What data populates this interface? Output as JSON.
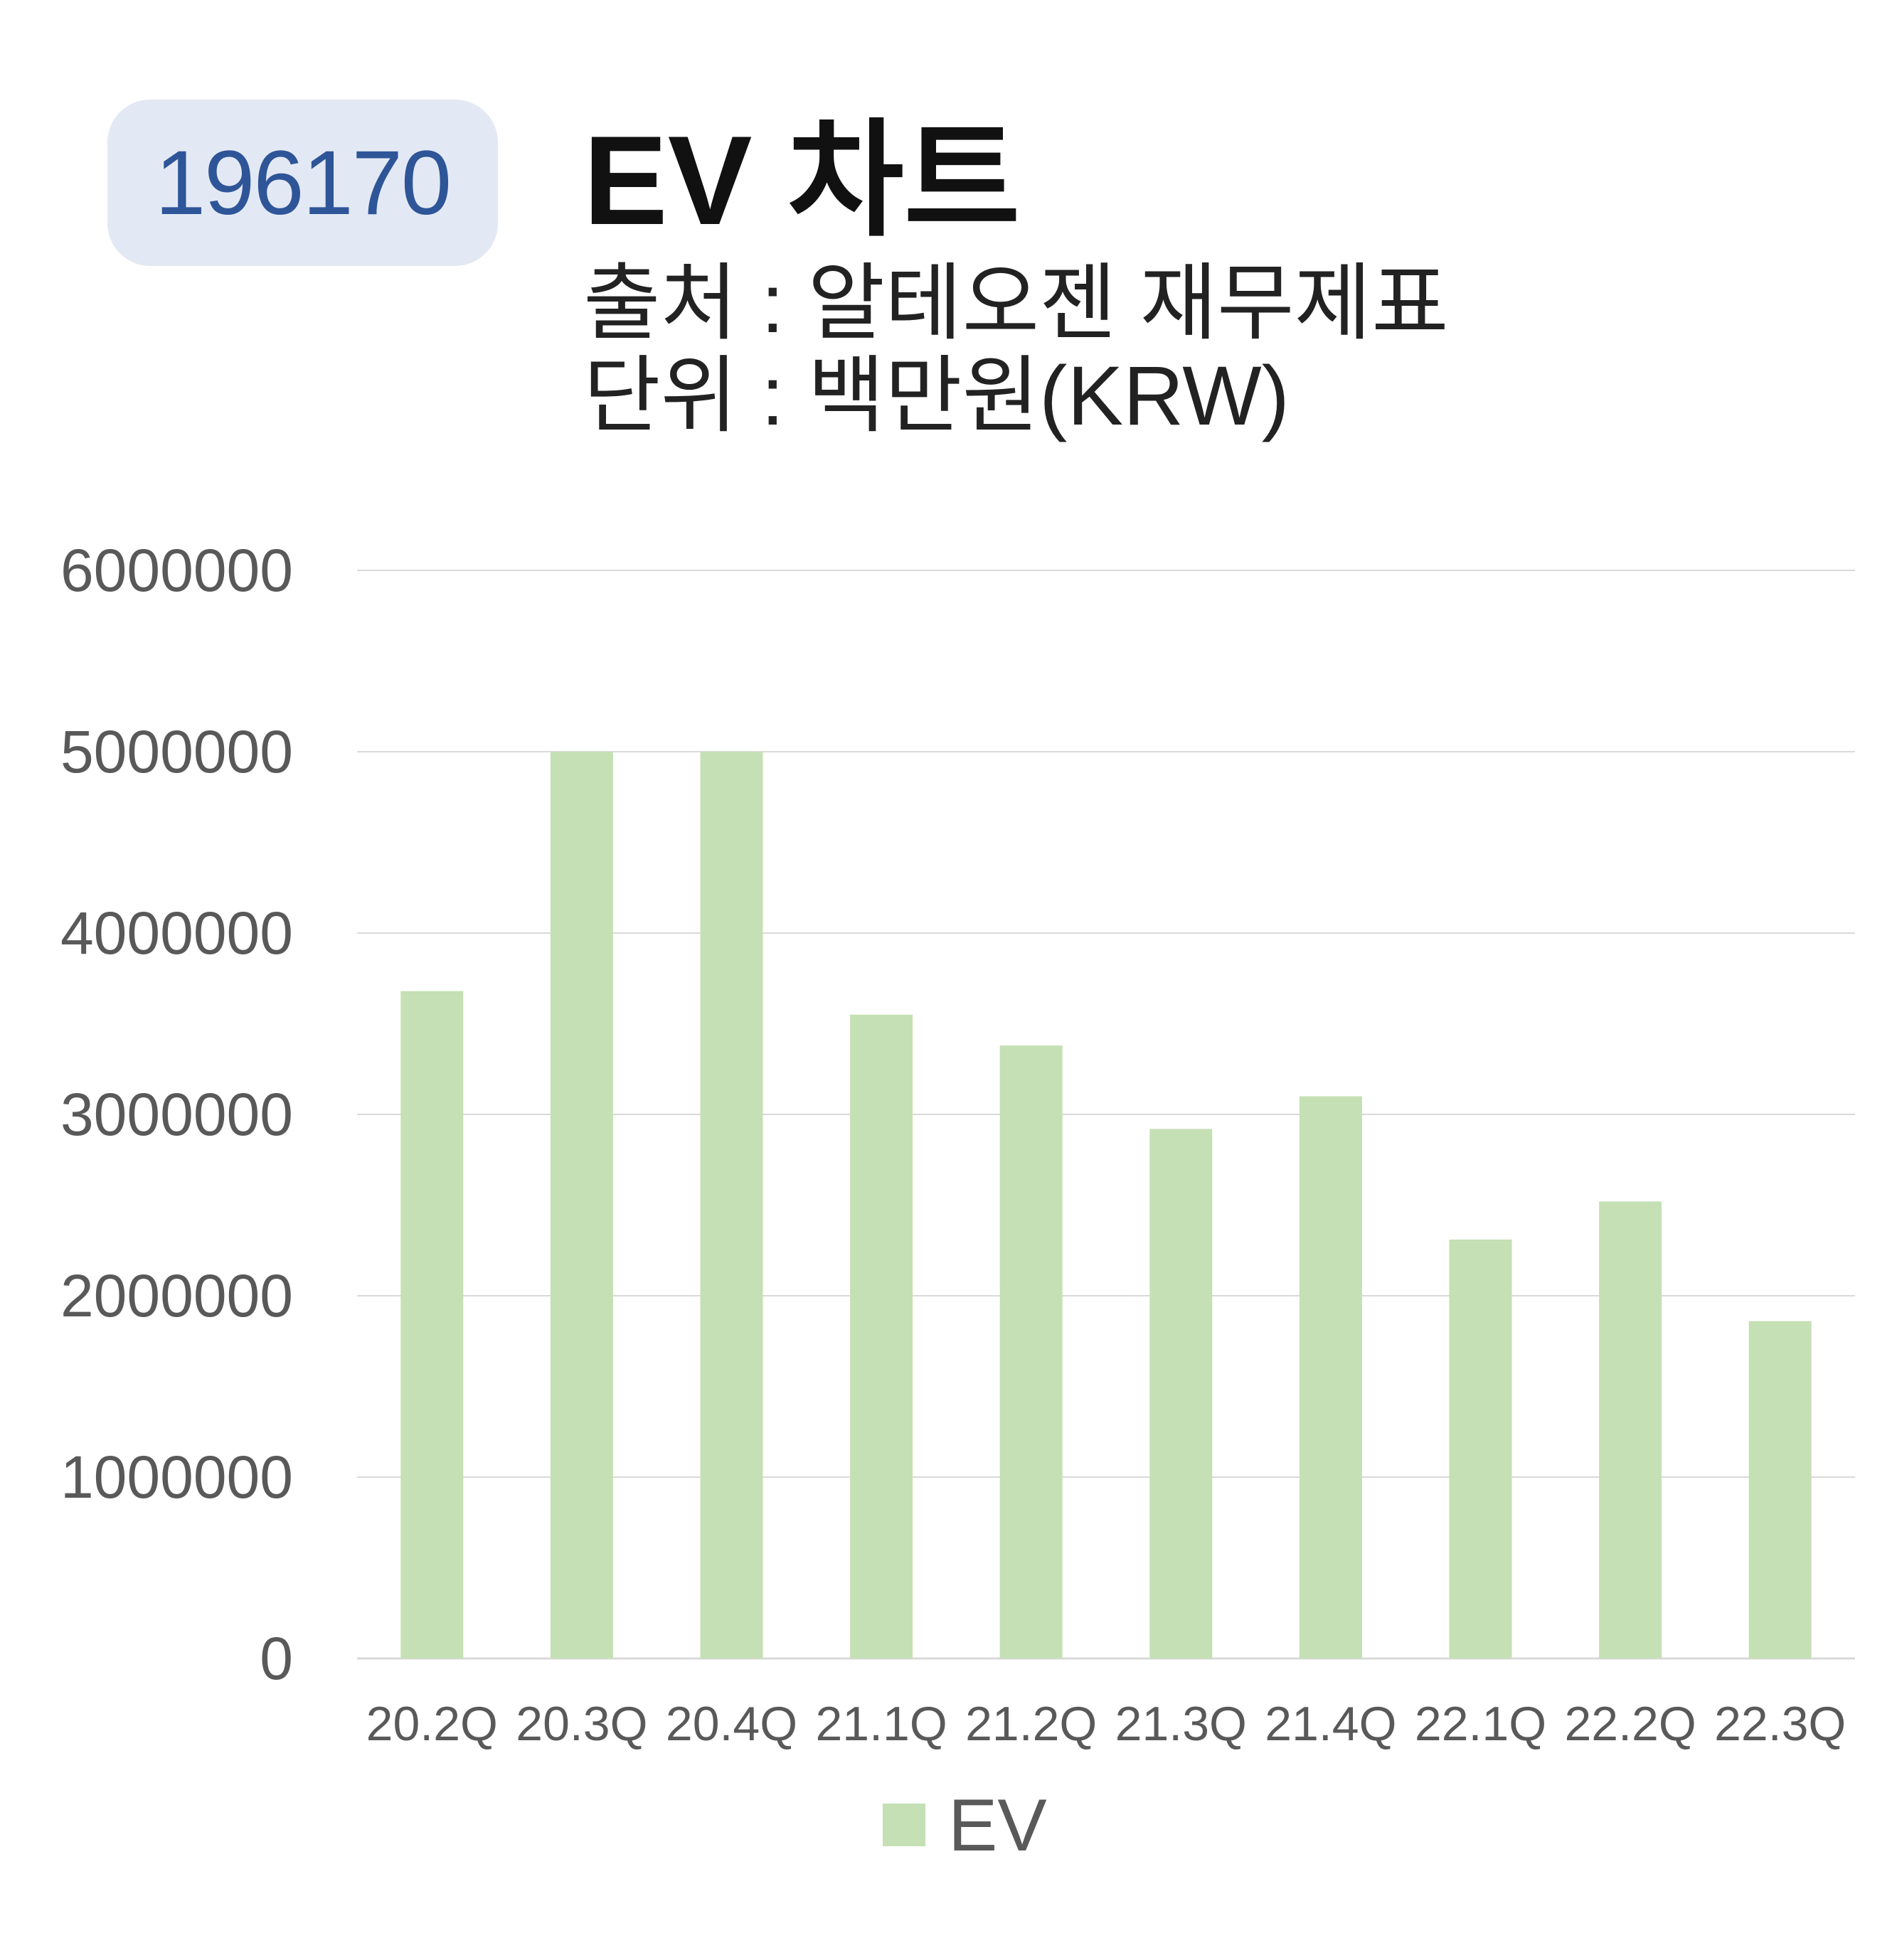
{
  "header": {
    "code": "196170",
    "title": "EV 차트",
    "source": "출처 : 알테오젠 재무제표",
    "unit": "단위 : 백만원(KRW)"
  },
  "colors": {
    "bar": "#c5e0b4",
    "badge_bg": "#e3e9f4",
    "badge_text": "#2e5597",
    "grid": "#d9d9d9",
    "tick_text": "#595959"
  },
  "chart_data": {
    "type": "bar",
    "title": "EV 차트",
    "categories": [
      "20.2Q",
      "20.3Q",
      "20.4Q",
      "21.1Q",
      "21.2Q",
      "21.3Q",
      "21.4Q",
      "22.1Q",
      "22.2Q",
      "22.3Q"
    ],
    "series": [
      {
        "name": "EV",
        "values": [
          3680000,
          5000000,
          5000000,
          3550000,
          3380000,
          2920000,
          3100000,
          2310000,
          2520000,
          1860000
        ]
      }
    ],
    "yticks": [
      "0",
      "1000000",
      "2000000",
      "3000000",
      "4000000",
      "5000000",
      "6000000"
    ],
    "ylim": [
      0,
      6000000
    ],
    "grid": true,
    "legend": "bottom"
  }
}
